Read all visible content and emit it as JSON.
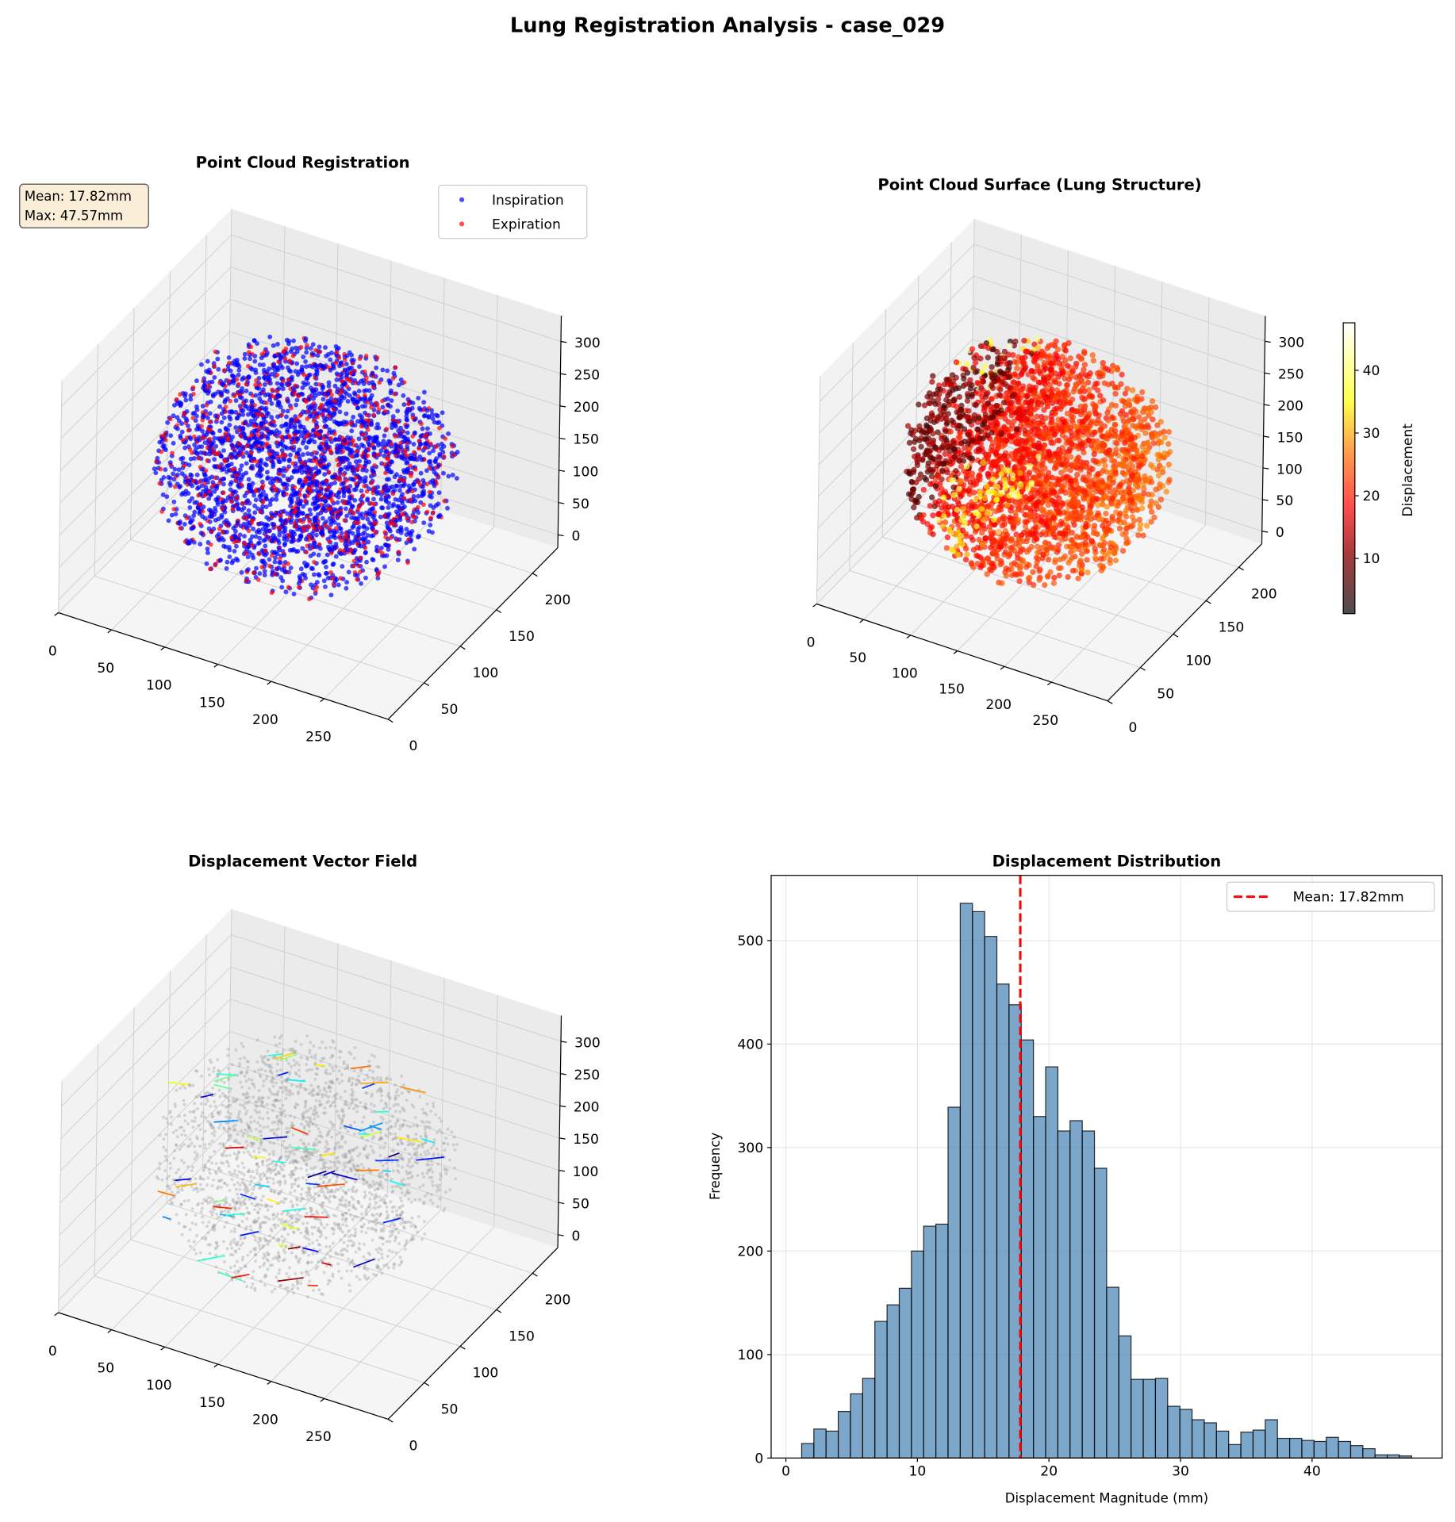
{
  "title": "Lung Registration Analysis - case_029",
  "colors": {
    "inspiration": "#0000ff",
    "expiration": "#ff0000",
    "hist_bar": "#4682b4",
    "mean_line": "#ff0000"
  },
  "chart_data": [
    {
      "type": "scatter3d",
      "title": "Point Cloud Registration",
      "legend": {
        "placement": "top-right",
        "entries": [
          "Inspiration",
          "Expiration"
        ]
      },
      "annotation": [
        "Mean: 17.82mm",
        "Max: 47.57mm"
      ],
      "x_ticks": [
        "0",
        "50",
        "100",
        "150",
        "200",
        "250"
      ],
      "y_ticks": [
        "0",
        "50",
        "100",
        "150",
        "200"
      ],
      "z_ticks": [
        "0",
        "50",
        "100",
        "150",
        "200",
        "250",
        "300"
      ],
      "grid": true
    },
    {
      "type": "scatter3d",
      "title": "Point Cloud Surface (Lung Structure)",
      "colormap": "hot",
      "colorbar": {
        "label": "Displacement",
        "ticks": [
          "10",
          "20",
          "30",
          "40"
        ],
        "range": [
          1.2,
          47.57
        ]
      },
      "x_ticks": [
        "0",
        "50",
        "100",
        "150",
        "200",
        "250"
      ],
      "y_ticks": [
        "0",
        "50",
        "100",
        "150",
        "200"
      ],
      "z_ticks": [
        "0",
        "50",
        "100",
        "150",
        "200",
        "250",
        "300"
      ],
      "grid": true
    },
    {
      "type": "quiver3d",
      "title": "Displacement Vector Field",
      "colormap": "jet",
      "x_ticks": [
        "0",
        "50",
        "100",
        "150",
        "200",
        "250"
      ],
      "y_ticks": [
        "0",
        "50",
        "100",
        "150",
        "200"
      ],
      "z_ticks": [
        "0",
        "50",
        "100",
        "150",
        "200",
        "250",
        "300"
      ],
      "grid": true
    },
    {
      "type": "bar",
      "title": "Displacement Distribution",
      "xlabel": "Displacement Magnitude (mm)",
      "ylabel": "Frequency",
      "bin_range": [
        1.2,
        47.57
      ],
      "values": [
        14,
        28,
        26,
        45,
        62,
        77,
        132,
        148,
        164,
        200,
        224,
        226,
        339,
        536,
        528,
        504,
        458,
        438,
        404,
        330,
        378,
        316,
        326,
        316,
        280,
        165,
        118,
        76,
        76,
        77,
        50,
        47,
        37,
        34,
        26,
        13,
        25,
        27,
        37,
        19,
        19,
        17,
        16,
        20,
        16,
        12,
        9,
        3,
        3,
        2
      ],
      "xlim": [
        -1.12,
        49.89
      ],
      "ylim": [
        0,
        563
      ],
      "x_ticks": [
        "0",
        "10",
        "20",
        "30",
        "40"
      ],
      "y_ticks": [
        "0",
        "100",
        "200",
        "300",
        "400",
        "500"
      ],
      "mean_line": {
        "value": 17.82,
        "label": "Mean: 17.82mm"
      },
      "legend": {
        "placement": "top-right"
      },
      "grid": true
    }
  ]
}
